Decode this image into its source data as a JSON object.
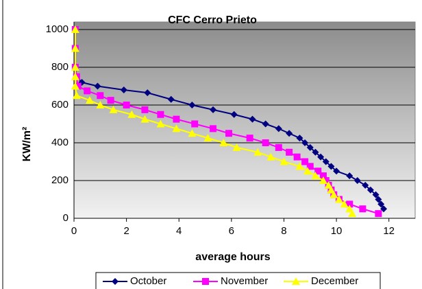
{
  "chart_data": {
    "type": "line",
    "title": "CFC Cerro Prieto",
    "xlabel": "average hours",
    "ylabel": "KW/m²",
    "xlim": [
      0,
      13
    ],
    "xticks": [
      0,
      2,
      4,
      6,
      8,
      10,
      12
    ],
    "ylim": [
      0,
      1040
    ],
    "yticks": [
      0,
      200,
      400,
      600,
      800,
      1000
    ],
    "grid": true,
    "legend": "bottom",
    "series": [
      {
        "name": "October",
        "color": "#000080",
        "marker": "diamond",
        "x": [
          0.05,
          0.05,
          0.05,
          0.1,
          0.3,
          0.9,
          1.9,
          2.8,
          3.7,
          4.5,
          5.3,
          6.1,
          6.8,
          7.3,
          7.8,
          8.2,
          8.6,
          8.8,
          9.0,
          9.2,
          9.4,
          9.6,
          9.8,
          10.0,
          10.5,
          10.8,
          11.1,
          11.3,
          11.5,
          11.6,
          11.7,
          11.8
        ],
        "values": [
          1000,
          900,
          800,
          750,
          720,
          700,
          680,
          665,
          630,
          600,
          575,
          550,
          525,
          500,
          475,
          450,
          425,
          400,
          375,
          350,
          325,
          300,
          275,
          250,
          225,
          200,
          175,
          150,
          125,
          100,
          75,
          50
        ]
      },
      {
        "name": "November",
        "color": "#FF00FF",
        "marker": "square",
        "x": [
          0.05,
          0.05,
          0.05,
          0.1,
          0.15,
          0.5,
          1.0,
          1.4,
          2.0,
          2.7,
          3.3,
          3.9,
          4.6,
          5.3,
          5.9,
          6.7,
          7.3,
          7.8,
          8.2,
          8.5,
          8.8,
          9.0,
          9.3,
          9.5,
          9.6,
          9.7,
          9.8,
          9.9,
          10.1,
          10.5,
          11.0,
          11.6
        ],
        "values": [
          1000,
          900,
          800,
          750,
          700,
          675,
          650,
          625,
          600,
          575,
          550,
          525,
          500,
          475,
          450,
          425,
          400,
          375,
          350,
          325,
          300,
          275,
          250,
          225,
          200,
          175,
          150,
          125,
          100,
          75,
          50,
          25
        ]
      },
      {
        "name": "December",
        "color": "#FFFF00",
        "marker": "triangle",
        "x": [
          0.05,
          0.05,
          0.05,
          0.05,
          0.05,
          0.1,
          0.6,
          1.0,
          1.5,
          2.2,
          2.7,
          3.3,
          3.9,
          4.5,
          5.1,
          5.7,
          6.2,
          7.0,
          7.5,
          8.0,
          8.6,
          8.9,
          9.2,
          9.5,
          9.7,
          9.8,
          9.9,
          10.1,
          10.3,
          10.5,
          10.6
        ],
        "values": [
          1000,
          900,
          800,
          750,
          700,
          650,
          625,
          600,
          575,
          550,
          525,
          500,
          475,
          450,
          425,
          400,
          375,
          350,
          325,
          300,
          275,
          250,
          225,
          200,
          175,
          150,
          125,
          100,
          75,
          50,
          25
        ]
      }
    ]
  }
}
